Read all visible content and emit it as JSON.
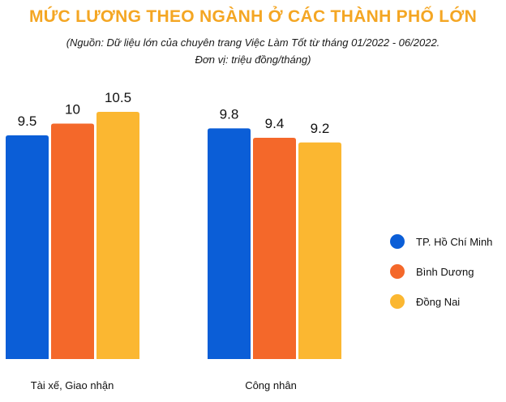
{
  "chart_data": {
    "type": "bar",
    "title": "MỨC LƯƠNG THEO NGÀNH Ở CÁC THÀNH PHỐ LỚN",
    "subtitle_line1": "(Nguồn: Dữ liệu lớn của chuyên trang Việc Làm Tốt từ tháng 01/2022 - 06/2022.",
    "subtitle_line2": "Đơn vị: triệu đồng/tháng)",
    "categories": [
      "Tài xế, Giao nhận",
      "Công nhân"
    ],
    "series": [
      {
        "name": "TP. Hồ Chí Minh",
        "color": "#0b5ed7",
        "values": [
          9.5,
          9.8
        ],
        "labels": [
          "9.5",
          "9.8"
        ]
      },
      {
        "name": "Bình Dương",
        "color": "#f4682a",
        "values": [
          10,
          9.4
        ],
        "labels": [
          "10",
          "9.4"
        ]
      },
      {
        "name": "Đồng Nai",
        "color": "#fbb731",
        "values": [
          10.5,
          9.2
        ],
        "labels": [
          "10.5",
          "9.2"
        ]
      }
    ],
    "ylim": [
      0,
      10.5
    ],
    "legend_position": "right"
  }
}
